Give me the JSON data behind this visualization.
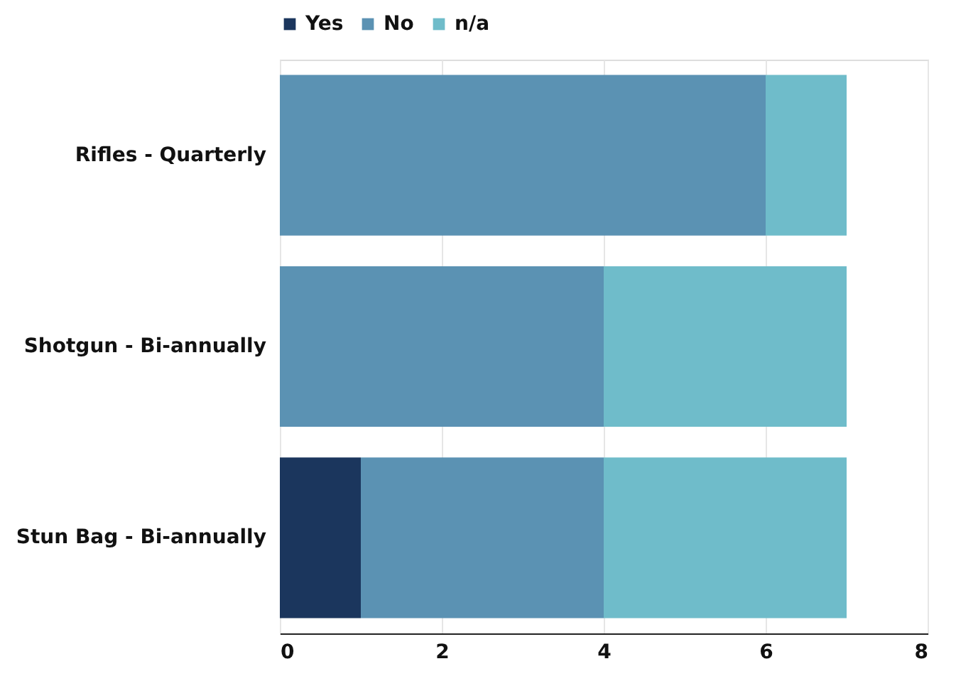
{
  "chart_data": {
    "type": "bar",
    "orientation": "horizontal",
    "stacked": true,
    "categories": [
      "Rifles - Quarterly",
      "Shotgun - Bi-annually",
      "Stun Bag - Bi-annually"
    ],
    "series": [
      {
        "name": "Yes",
        "color": "#1b365d",
        "values": [
          0,
          0,
          1
        ]
      },
      {
        "name": "No",
        "color": "#5b92b3",
        "values": [
          6,
          4,
          3
        ]
      },
      {
        "name": "n/a",
        "color": "#6fbcca",
        "values": [
          1,
          3,
          3
        ]
      }
    ],
    "xlim": [
      0,
      8
    ],
    "xticks": [
      0,
      2,
      4,
      6,
      8
    ],
    "grid": "x",
    "legend": "top"
  }
}
